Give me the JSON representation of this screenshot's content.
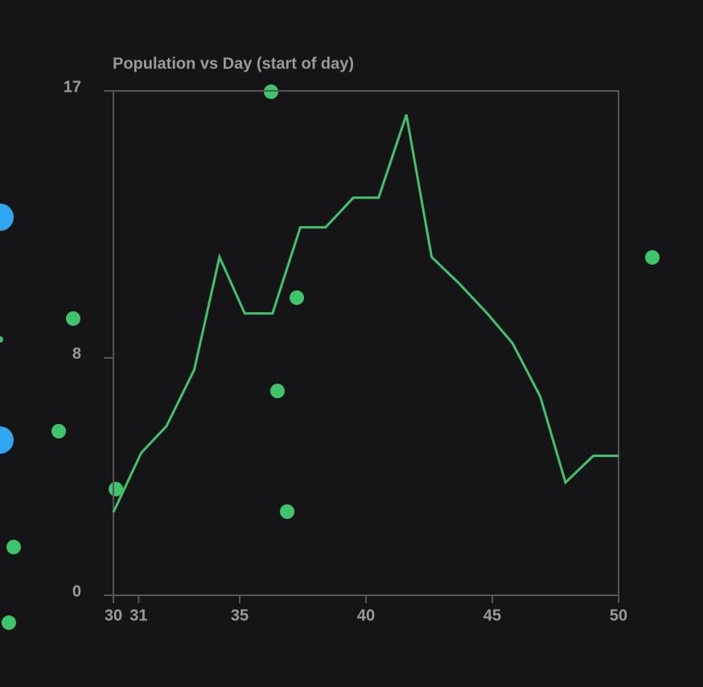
{
  "chart_data": {
    "type": "line",
    "title": "Population vs Day (start of day)",
    "x": [
      30,
      31.1,
      32.1,
      33.2,
      34.2,
      35.2,
      36.3,
      37.4,
      38.4,
      39.5,
      40.5,
      41.6,
      42.6,
      43.7,
      44.8,
      45.8,
      46.9,
      47.9,
      49,
      50
    ],
    "values": [
      2.8,
      4.8,
      5.7,
      7.6,
      11.4,
      9.5,
      9.5,
      12.4,
      12.4,
      13.4,
      13.4,
      16.2,
      11.4,
      10.5,
      9.5,
      8.5,
      6.7,
      3.8,
      4.7,
      4.7
    ],
    "color": "#3fc46a",
    "xlim": [
      30,
      50
    ],
    "xticks": [
      30,
      31,
      35,
      40,
      45,
      50
    ],
    "ylim": [
      0,
      17
    ],
    "yticks": [
      0,
      8,
      17
    ]
  }
}
